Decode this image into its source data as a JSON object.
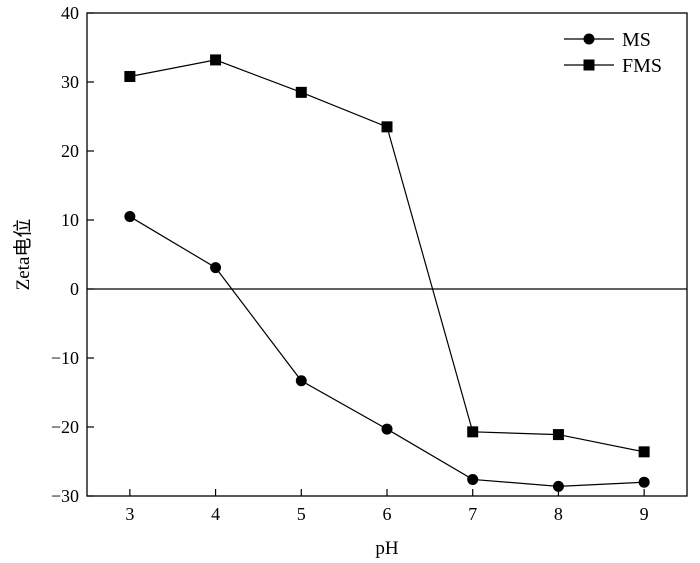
{
  "chart_data": {
    "type": "line",
    "xlabel": "pH",
    "ylabel": "Zeta电位",
    "xlim": [
      2.5,
      9.5
    ],
    "ylim": [
      -30,
      40
    ],
    "x": [
      3,
      4,
      5,
      6,
      7,
      8,
      9
    ],
    "xticks": [
      "3",
      "4",
      "5",
      "6",
      "7",
      "8",
      "9"
    ],
    "yticks": [
      -30,
      -20,
      -10,
      0,
      10,
      20,
      30,
      40
    ],
    "ytick_labels": [
      "−30",
      "−20",
      "−10",
      "0",
      "10",
      "20",
      "30",
      "40"
    ],
    "zero_line": true,
    "grid": false,
    "legend_position": "top-right",
    "series": [
      {
        "name": "MS",
        "marker": "circle",
        "values": [
          10.5,
          3.1,
          -13.3,
          -20.3,
          -27.6,
          -28.6,
          -28.0
        ]
      },
      {
        "name": "FMS",
        "marker": "square",
        "values": [
          30.8,
          33.2,
          28.5,
          23.5,
          -20.7,
          -21.1,
          -23.6
        ]
      }
    ],
    "colors": {
      "line": "#000000",
      "marker": "#000000",
      "background": "#ffffff"
    }
  }
}
